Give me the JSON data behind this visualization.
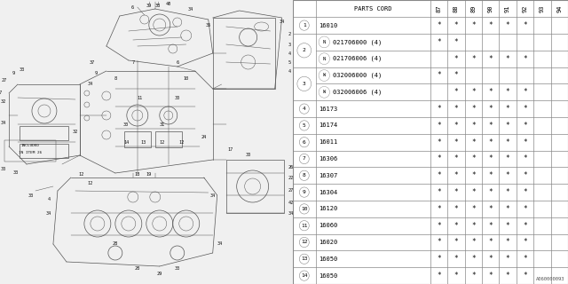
{
  "background_color": "#f0f0f0",
  "table_bg": "#ffffff",
  "border_color": "#888888",
  "text_color": "#000000",
  "diagram_color": "#555555",
  "yr_labels": [
    "87",
    "88",
    "89",
    "90",
    "91",
    "92",
    "93",
    "94"
  ],
  "rows": [
    {
      "num": "1",
      "dual": false,
      "parts": [
        "16010"
      ],
      "prefix": [
        null
      ],
      "marks": [
        [
          1,
          1,
          1,
          1,
          1,
          1,
          0,
          0
        ]
      ]
    },
    {
      "num": "2",
      "dual": true,
      "parts": [
        "021706000 (4)",
        "021706006 (4)"
      ],
      "prefix": [
        "N",
        "N"
      ],
      "marks": [
        [
          1,
          1,
          0,
          0,
          0,
          0,
          0,
          0
        ],
        [
          0,
          1,
          1,
          1,
          1,
          1,
          0,
          0
        ]
      ]
    },
    {
      "num": "3",
      "dual": true,
      "parts": [
        "032006000 (4)",
        "032006006 (4)"
      ],
      "prefix": [
        "W",
        "W"
      ],
      "marks": [
        [
          1,
          1,
          0,
          0,
          0,
          0,
          0,
          0
        ],
        [
          0,
          1,
          1,
          1,
          1,
          1,
          0,
          0
        ]
      ]
    },
    {
      "num": "4",
      "dual": false,
      "parts": [
        "16173"
      ],
      "prefix": [
        null
      ],
      "marks": [
        [
          1,
          1,
          1,
          1,
          1,
          1,
          0,
          0
        ]
      ]
    },
    {
      "num": "5",
      "dual": false,
      "parts": [
        "16174"
      ],
      "prefix": [
        null
      ],
      "marks": [
        [
          1,
          1,
          1,
          1,
          1,
          1,
          0,
          0
        ]
      ]
    },
    {
      "num": "6",
      "dual": false,
      "parts": [
        "16011"
      ],
      "prefix": [
        null
      ],
      "marks": [
        [
          1,
          1,
          1,
          1,
          1,
          1,
          0,
          0
        ]
      ]
    },
    {
      "num": "7",
      "dual": false,
      "parts": [
        "16306"
      ],
      "prefix": [
        null
      ],
      "marks": [
        [
          1,
          1,
          1,
          1,
          1,
          1,
          0,
          0
        ]
      ]
    },
    {
      "num": "8",
      "dual": false,
      "parts": [
        "16307"
      ],
      "prefix": [
        null
      ],
      "marks": [
        [
          1,
          1,
          1,
          1,
          1,
          1,
          0,
          0
        ]
      ]
    },
    {
      "num": "9",
      "dual": false,
      "parts": [
        "16304"
      ],
      "prefix": [
        null
      ],
      "marks": [
        [
          1,
          1,
          1,
          1,
          1,
          1,
          0,
          0
        ]
      ]
    },
    {
      "num": "10",
      "dual": false,
      "parts": [
        "16120"
      ],
      "prefix": [
        null
      ],
      "marks": [
        [
          1,
          1,
          1,
          1,
          1,
          1,
          0,
          0
        ]
      ]
    },
    {
      "num": "11",
      "dual": false,
      "parts": [
        "16060"
      ],
      "prefix": [
        null
      ],
      "marks": [
        [
          1,
          1,
          1,
          1,
          1,
          1,
          0,
          0
        ]
      ]
    },
    {
      "num": "12",
      "dual": false,
      "parts": [
        "16020"
      ],
      "prefix": [
        null
      ],
      "marks": [
        [
          1,
          1,
          1,
          1,
          1,
          1,
          0,
          0
        ]
      ]
    },
    {
      "num": "13",
      "dual": false,
      "parts": [
        "16050"
      ],
      "prefix": [
        null
      ],
      "marks": [
        [
          1,
          1,
          1,
          1,
          1,
          1,
          0,
          0
        ]
      ]
    },
    {
      "num": "14",
      "dual": false,
      "parts": [
        "16050"
      ],
      "prefix": [
        null
      ],
      "marks": [
        [
          1,
          1,
          1,
          1,
          1,
          1,
          0,
          0
        ]
      ]
    }
  ],
  "watermark": "A060000093",
  "font_size": 5.0,
  "star_size": 5.5
}
